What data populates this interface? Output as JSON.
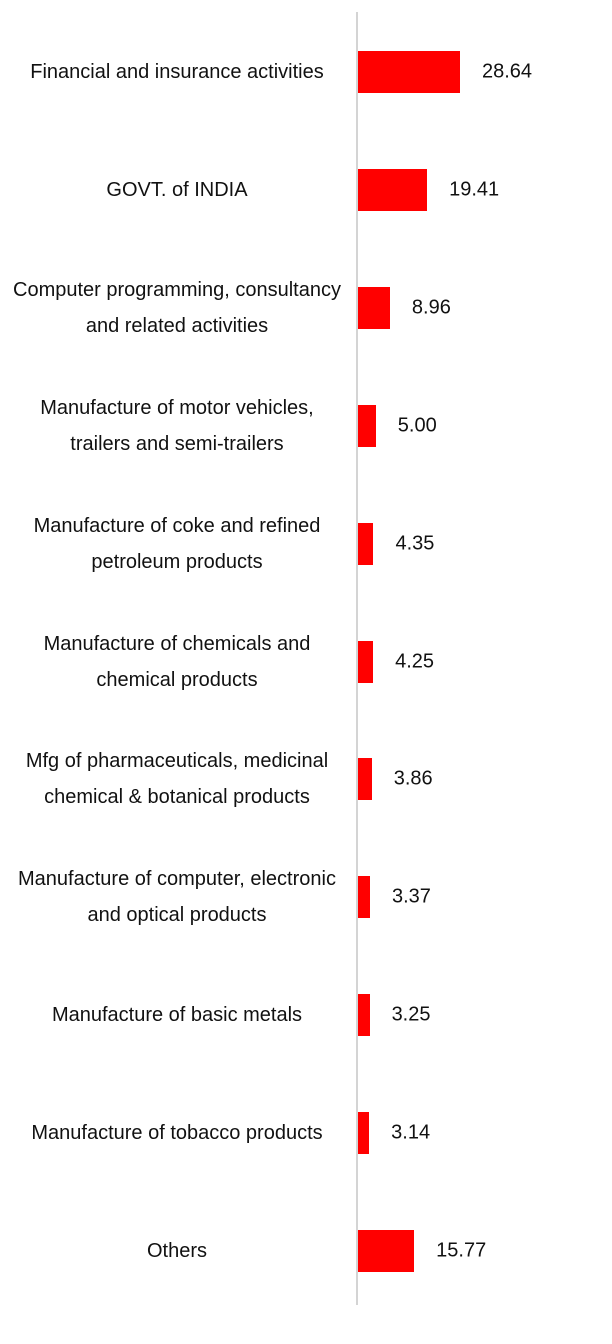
{
  "chart_data": {
    "type": "bar",
    "orientation": "horizontal",
    "color": "#ff0000",
    "categories": [
      "Financial and insurance activities",
      "GOVT. of INDIA",
      "Computer programming, consultancy and related activities",
      "Manufacture of motor vehicles, trailers and semi-trailers",
      "Manufacture of coke and refined petroleum products",
      "Manufacture of chemicals and chemical products",
      "Mfg of pharmaceuticals, medicinal chemical & botanical products",
      "Manufacture of computer, electronic and optical products",
      "Manufacture of basic metals",
      "Manufacture of tobacco products",
      "Others"
    ],
    "values": [
      28.64,
      19.41,
      8.96,
      5,
      4.35,
      4.25,
      3.86,
      3.37,
      3.25,
      3.14,
      15.77
    ],
    "value_labels": [
      "28.64",
      "19.41",
      "8.96",
      "5.00",
      "4.35",
      "4.25",
      "3.86",
      "3.37",
      "3.25",
      "3.14",
      "15.77"
    ]
  }
}
